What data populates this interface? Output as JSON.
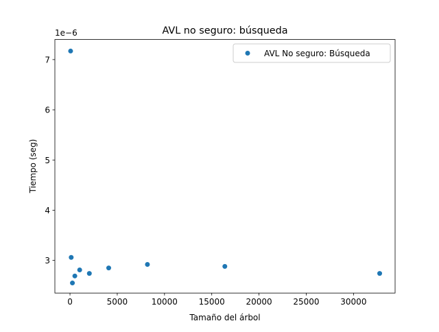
{
  "chart_data": {
    "type": "scatter",
    "title": "AVL no seguro: búsqueda",
    "xlabel": "Tamaño del árbol",
    "ylabel": "Tiempo (seg)",
    "y_scale_label": "1e−6",
    "xlim": [
      -1600,
      34400
    ],
    "ylim": [
      2.35,
      7.4
    ],
    "xticks": [
      0,
      5000,
      10000,
      15000,
      20000,
      25000,
      30000
    ],
    "yticks": [
      3,
      4,
      5,
      6,
      7
    ],
    "legend_position": "top-right",
    "grid": false,
    "series": [
      {
        "name": "AVL No seguro: Búsqueda",
        "color": "#1f77b4",
        "x": [
          64,
          128,
          256,
          512,
          1024,
          2048,
          4096,
          8192,
          16384,
          32768
        ],
        "y": [
          7.17,
          3.06,
          2.55,
          2.69,
          2.81,
          2.74,
          2.85,
          2.92,
          2.88,
          2.74
        ]
      }
    ]
  }
}
